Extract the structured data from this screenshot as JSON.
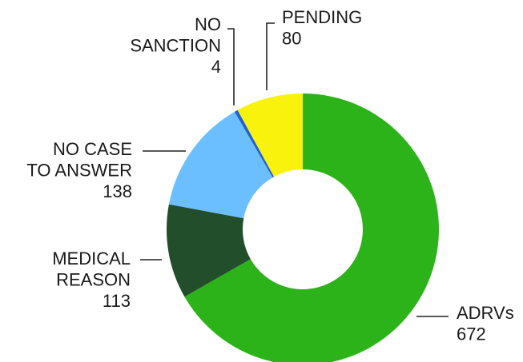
{
  "chart_data": {
    "type": "donut",
    "categories": [
      [
        "ADRVs"
      ],
      [
        "MEDICAL",
        "REASON"
      ],
      [
        "NO CASE",
        "TO ANSWER"
      ],
      [
        "NO",
        "SANCTION"
      ],
      [
        "PENDING"
      ]
    ],
    "values": [
      672,
      113,
      138,
      4,
      80
    ],
    "colors": [
      "#2db31a",
      "#234e2b",
      "#6cbfff",
      "#1f5fd8",
      "#f8f20c"
    ]
  }
}
